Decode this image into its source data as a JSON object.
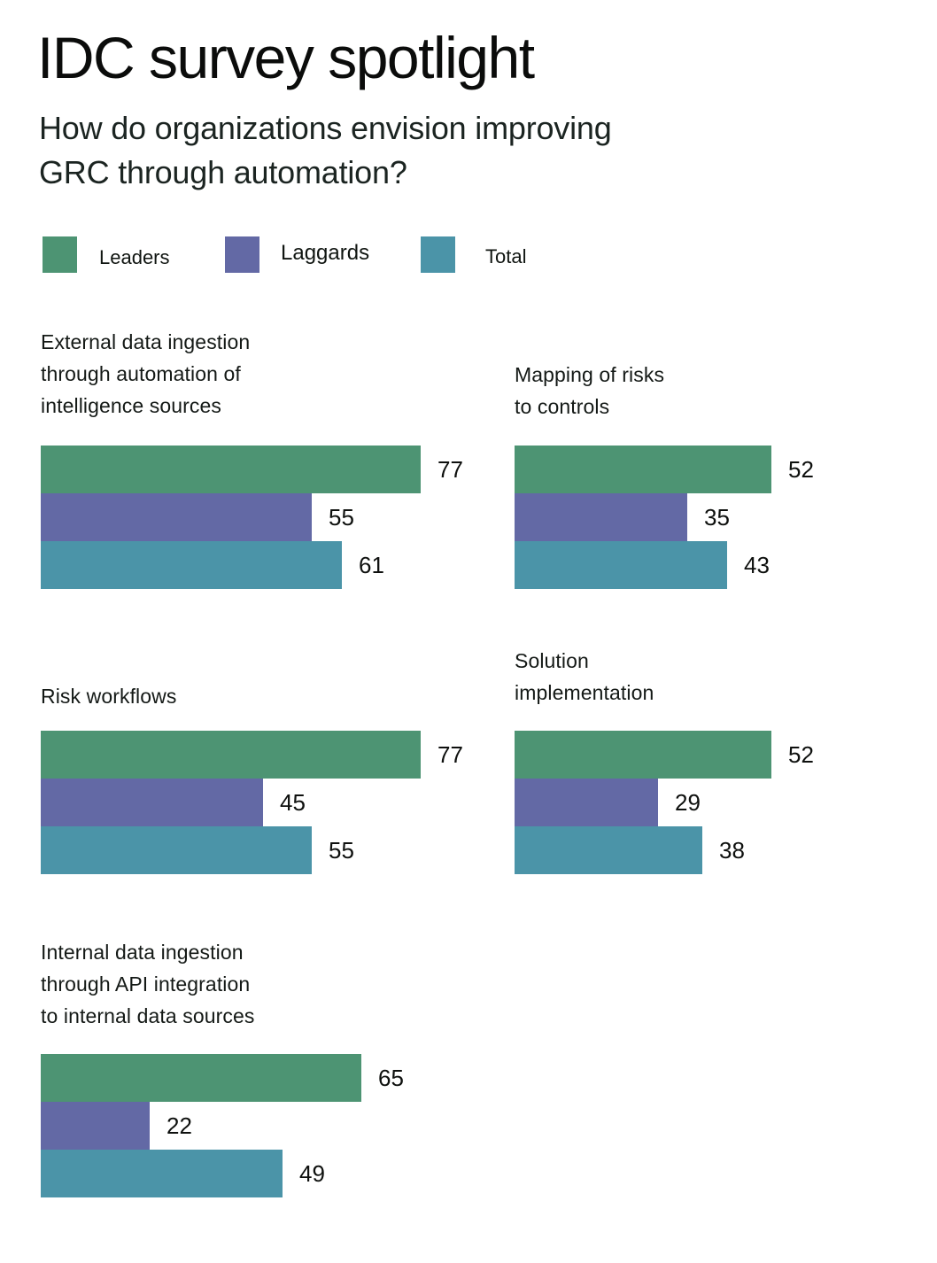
{
  "header": {
    "title": "IDC survey spotlight",
    "subtitle_lines": [
      "How do organizations envision improving",
      "GRC through automation?"
    ]
  },
  "legend": {
    "items": [
      {
        "label": "Leaders",
        "color": "#4d9473",
        "icon": "leaders-swatch"
      },
      {
        "label": "Laggards",
        "color": "#6369a5",
        "icon": "laggards-swatch"
      },
      {
        "label": "Total",
        "color": "#4b94a8",
        "icon": "total-swatch"
      }
    ]
  },
  "chart_data": {
    "type": "bar",
    "orientation": "horizontal",
    "title": "How do organizations envision improving GRC through automation?",
    "xlabel": "",
    "ylabel": "",
    "xlim": [
      0,
      100
    ],
    "grid": false,
    "legend_position": "top",
    "value_labels": "end-of-bar",
    "series_names": [
      "Leaders",
      "Laggards",
      "Total"
    ],
    "series_colors": [
      "#4d9473",
      "#6369a5",
      "#4b94a8"
    ],
    "groups": [
      {
        "category": "External data ingestion through automation of intelligence sources",
        "title_lines": [
          "External data ingestion",
          "through automation of",
          "intelligence sources"
        ],
        "values": [
          77,
          55,
          61
        ]
      },
      {
        "category": "Mapping of risks to controls",
        "title_lines": [
          "Mapping of risks",
          "to controls"
        ],
        "values": [
          52,
          35,
          43
        ]
      },
      {
        "category": "Risk workflows",
        "title_lines": [
          "Risk workflows"
        ],
        "values": [
          77,
          45,
          55
        ]
      },
      {
        "category": "Solution implementation",
        "title_lines": [
          "Solution",
          "implementation"
        ],
        "values": [
          52,
          29,
          38
        ]
      },
      {
        "category": "Internal data ingestion through API integration to internal data sources",
        "title_lines": [
          "Internal data ingestion",
          "through API integration",
          "to internal data sources"
        ],
        "values": [
          65,
          22,
          49
        ]
      }
    ]
  }
}
